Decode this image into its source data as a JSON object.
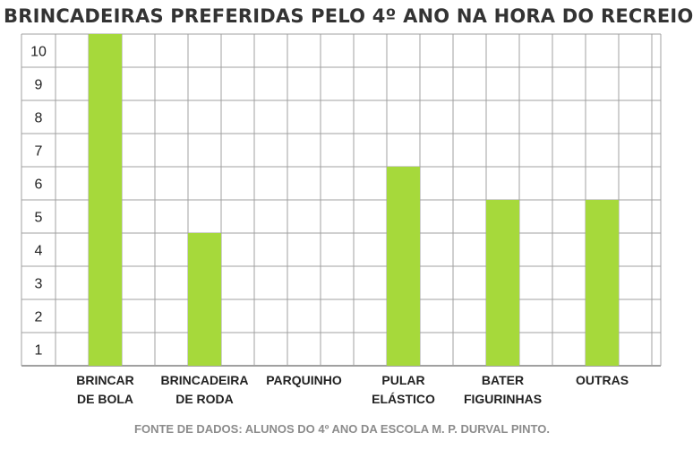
{
  "chart_data": {
    "type": "bar",
    "title": "BRINCADEIRAS PREFERIDAS PELO 4º ANO NA HORA DO RECREIO",
    "categories": [
      [
        "BRINCAR",
        "DE BOLA"
      ],
      [
        "BRINCADEIRA",
        "DE RODA"
      ],
      [
        "PARQUINHO"
      ],
      [
        "PULAR",
        "ELÁSTICO"
      ],
      [
        "BATER",
        "FIGURINHAS"
      ],
      [
        "OUTRAS"
      ]
    ],
    "values": [
      10,
      4,
      0,
      6,
      5,
      5
    ],
    "ylim": [
      0,
      10
    ],
    "y_ticks": [
      "1",
      "2",
      "3",
      "4",
      "5",
      "6",
      "7",
      "8",
      "9",
      "10"
    ],
    "grid": true,
    "bar_color": "#a6d93b",
    "grid_color": "#a0a0a0",
    "source": "FONTE DE DADOS: ALUNOS DO 4º ANO DA ESCOLA M. P. DURVAL PINTO."
  }
}
